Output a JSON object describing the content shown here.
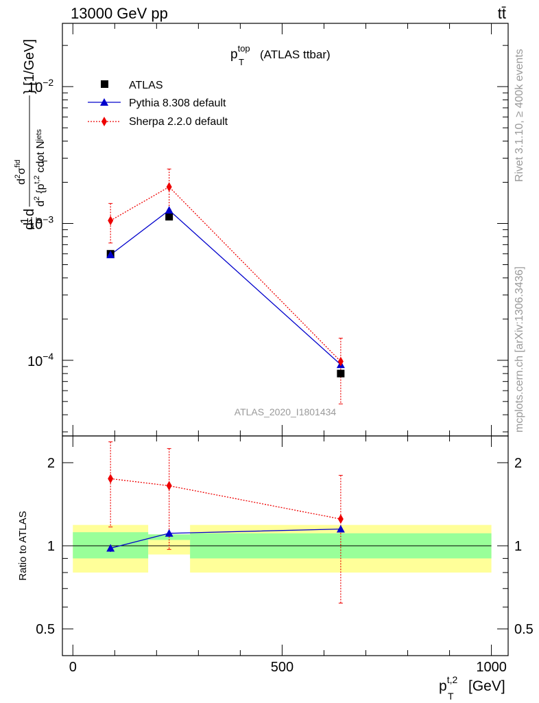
{
  "header": {
    "energy_label": "13000 GeV pp",
    "process_label": "tt̄"
  },
  "side_labels": {
    "rivet": "Rivet 3.1.10, ≥ 400k events",
    "mcplots": "mcplots.cern.ch [arXiv:1306.3436]"
  },
  "main_plot": {
    "title_var": "p",
    "title_sup": "top",
    "title_sub": "T",
    "title_rest": "(ATLAS ttbar)",
    "analysis_tag": "ATLAS_2020_I1801434",
    "ylabel_parts": {
      "frac_num_top": "d",
      "frac_den": "σ",
      "one": "1",
      "d": "d",
      "dsig_num": "d",
      "dsig_num_sup": "2",
      "dsig_num_sigma": "σ",
      "dsig_num_sub": "fid",
      "dsig_den": "d",
      "dsig_den_sup": "2",
      "dsig_den_rest": "{p",
      "dsig_den_sub": "T",
      "dsig_den_sup2": "t,2",
      "dsig_den_tail": "cdot N",
      "dsig_den_sub2": "jets",
      "close": "} [1/GeV]"
    },
    "yticks": [
      {
        "base": "10",
        "exp": "−2"
      },
      {
        "base": "10",
        "exp": "−3"
      },
      {
        "base": "10",
        "exp": "−4"
      }
    ],
    "legend": [
      {
        "label": "ATLAS",
        "color": "#000000"
      },
      {
        "label": "Pythia 8.308 default",
        "color": "#0000cc"
      },
      {
        "label": "Sherpa 2.2.0 default",
        "color": "#ee0000"
      }
    ]
  },
  "ratio_plot": {
    "ylabel": "Ratio to ATLAS",
    "yticks": [
      "0.5",
      "1",
      "2"
    ]
  },
  "x_axis": {
    "ticks": [
      "0",
      "500",
      "1000"
    ],
    "label_var": "p",
    "label_sub": "T",
    "label_sup": "t,2",
    "label_unit": "[GeV]"
  },
  "chart_data": [
    {
      "type": "line",
      "title": "p_T^top (ATLAS ttbar)",
      "xlabel": "p_T^{t,2} [GeV]",
      "ylabel": "1/σ dσ^fid/d{p_T^{t,2} cdot N_jets} [1/GeV]",
      "yscale": "log",
      "xlim": [
        -25,
        1040
      ],
      "ylim": [
        2.8e-05,
        0.029
      ],
      "series": [
        {
          "name": "ATLAS",
          "x": [
            90,
            230,
            640
          ],
          "y": [
            0.0006,
            0.00112,
            8e-05
          ],
          "bins": [
            [
              0,
              180
            ],
            [
              180,
              280
            ],
            [
              280,
              1000
            ]
          ]
        },
        {
          "name": "Pythia 8.308 default",
          "x": [
            90,
            230,
            640
          ],
          "y": [
            0.00059,
            0.00125,
            9.3e-05
          ]
        },
        {
          "name": "Sherpa 2.2.0 default",
          "x": [
            90,
            230,
            640
          ],
          "y": [
            0.00105,
            0.00185,
            9.8e-05
          ],
          "err_lo": [
            0.00072,
            0.00126,
            4.8e-05
          ],
          "err_hi": [
            0.0014,
            0.0025,
            0.000145
          ]
        }
      ]
    },
    {
      "type": "line",
      "title": "Ratio to ATLAS",
      "xlabel": "p_T^{t,2} [GeV]",
      "ylabel": "Ratio to ATLAS",
      "yscale": "log",
      "xlim": [
        -25,
        1040
      ],
      "ylim": [
        0.4,
        2.5
      ],
      "bands": [
        {
          "name": "ATLAS stat",
          "color": "#99ff99",
          "bins": [
            [
              0,
              180
            ],
            [
              180,
              280
            ],
            [
              280,
              1000
            ]
          ],
          "lo": [
            0.9,
            1.05,
            0.9
          ],
          "hi": [
            1.12,
            1.1,
            1.11
          ]
        },
        {
          "name": "ATLAS total",
          "color": "#ffff99",
          "bins": [
            [
              0,
              180
            ],
            [
              180,
              280
            ],
            [
              280,
              1000
            ]
          ],
          "lo": [
            0.8,
            0.93,
            0.8
          ],
          "hi": [
            1.19,
            1.1,
            1.19
          ]
        }
      ],
      "series": [
        {
          "name": "Pythia 8.308 default",
          "x": [
            90,
            230,
            640
          ],
          "y": [
            0.98,
            1.11,
            1.15
          ],
          "err": [
            0.03,
            0.03,
            0.03
          ]
        },
        {
          "name": "Sherpa 2.2.0 default",
          "x": [
            90,
            230,
            640
          ],
          "y": [
            1.75,
            1.65,
            1.25
          ],
          "err_lo": [
            1.17,
            0.97,
            0.62
          ],
          "err_hi": [
            2.38,
            2.25,
            1.8
          ]
        }
      ]
    }
  ]
}
